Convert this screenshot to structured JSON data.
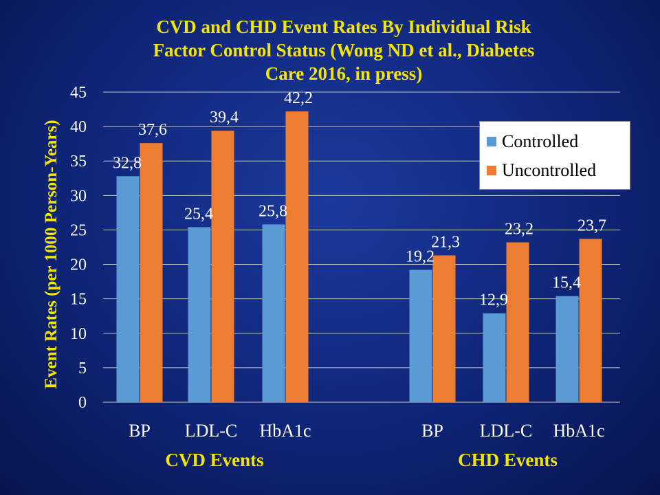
{
  "colors": {
    "controlled": "#5b9bd5",
    "uncontrolled": "#ed7d31",
    "title": "#f5e600",
    "gridline": "#c8c8c8"
  },
  "chart_data": {
    "type": "bar",
    "title_lines": [
      "CVD and CHD Event Rates By Individual Risk",
      "Factor Control Status (Wong ND et al.,   Diabetes",
      "Care 2016, in press)"
    ],
    "ylabel": "Event Rates (per 1000 Person-Years)",
    "ylim": [
      0,
      45
    ],
    "yticks": [
      "0",
      "5",
      "10",
      "15",
      "20",
      "25",
      "30",
      "35",
      "40",
      "45"
    ],
    "grid": true,
    "legend_position": "top-right",
    "groups": [
      {
        "label": "CVD Events",
        "categories": [
          "BP",
          "LDL-C",
          "HbA1c"
        ],
        "series": [
          {
            "name": "Controlled",
            "values": [
              32.8,
              25.4,
              25.8
            ],
            "labels": [
              "32,8",
              "25,4",
              "25,8"
            ]
          },
          {
            "name": "Uncontrolled",
            "values": [
              37.6,
              39.4,
              42.2
            ],
            "labels": [
              "37,6",
              "39,4",
              "42,2"
            ]
          }
        ]
      },
      {
        "label": "CHD Events",
        "categories": [
          "BP",
          "LDL-C",
          "HbA1c"
        ],
        "series": [
          {
            "name": "Controlled",
            "values": [
              19.2,
              12.9,
              15.4
            ],
            "labels": [
              "19,2",
              "12,9",
              "15,4"
            ]
          },
          {
            "name": "Uncontrolled",
            "values": [
              21.3,
              23.2,
              23.7
            ],
            "labels": [
              "21,3",
              "23,2",
              "23,7"
            ]
          }
        ]
      }
    ]
  }
}
